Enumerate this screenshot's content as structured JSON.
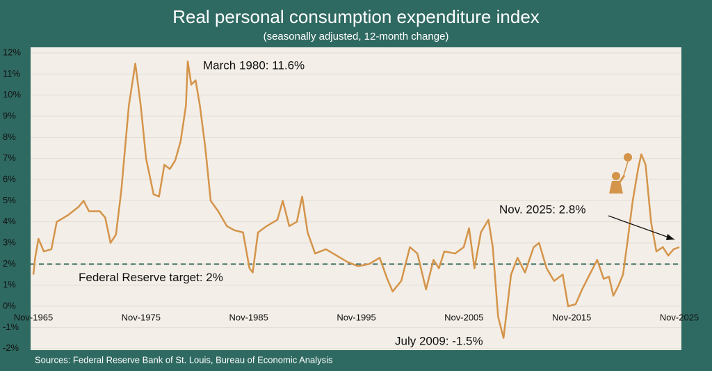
{
  "chart_data": {
    "type": "line",
    "title": "Real personal consumption expenditure index",
    "subtitle": "(seasonally adjusted, 12-month change)",
    "source": "Sources: Federal Reserve Bank of St. Louis, Bureau of Economic Analysis",
    "color": "#d4944a",
    "grid": true,
    "x": [
      1965.83,
      1966.0,
      1966.3,
      1966.8,
      1967.5,
      1968.0,
      1969.0,
      1970.0,
      1970.5,
      1971.0,
      1972.0,
      1972.5,
      1973.0,
      1973.5,
      1974.0,
      1974.7,
      1975.3,
      1975.8,
      1976.3,
      1977.0,
      1977.5,
      1978.0,
      1978.5,
      1979.0,
      1979.5,
      1980.0,
      1980.17,
      1980.5,
      1980.9,
      1981.3,
      1981.8,
      1982.3,
      1983.0,
      1983.8,
      1984.5,
      1985.3,
      1985.9,
      1986.2,
      1986.7,
      1987.5,
      1988.5,
      1989.0,
      1989.6,
      1990.3,
      1990.8,
      1991.3,
      1992.0,
      1993.0,
      1994.0,
      1995.0,
      1996.0,
      1997.0,
      1998.0,
      1998.7,
      1999.2,
      2000.0,
      2000.8,
      2001.5,
      2002.3,
      2003.0,
      2003.5,
      2004.0,
      2005.0,
      2005.8,
      2006.3,
      2006.8,
      2007.4,
      2008.1,
      2008.5,
      2009.0,
      2009.5,
      2010.2,
      2010.8,
      2011.5,
      2012.3,
      2012.8,
      2013.5,
      2014.2,
      2015.0,
      2015.5,
      2016.2,
      2016.8,
      2017.5,
      2018.2,
      2018.8,
      2019.3,
      2019.7,
      2020.2,
      2020.6,
      2021.0,
      2021.5,
      2022.0,
      2022.3,
      2022.7,
      2023.2,
      2023.7,
      2024.3,
      2024.8,
      2025.3,
      2025.83
    ],
    "values": [
      1.5,
      2.3,
      3.2,
      2.6,
      2.7,
      4.0,
      4.3,
      4.7,
      5.0,
      4.5,
      4.5,
      4.2,
      3.0,
      3.4,
      5.5,
      9.5,
      11.5,
      9.5,
      7.0,
      5.3,
      5.2,
      6.7,
      6.5,
      6.9,
      7.8,
      9.5,
      11.6,
      10.5,
      10.7,
      9.5,
      7.5,
      5.0,
      4.5,
      3.8,
      3.6,
      3.5,
      1.8,
      1.6,
      3.5,
      3.8,
      4.1,
      5.0,
      3.8,
      4.0,
      5.2,
      3.5,
      2.5,
      2.7,
      2.4,
      2.1,
      1.9,
      2.0,
      2.3,
      1.3,
      0.7,
      1.2,
      2.8,
      2.5,
      0.8,
      2.2,
      1.8,
      2.6,
      2.5,
      2.8,
      3.7,
      1.8,
      3.5,
      4.1,
      2.8,
      -0.5,
      -1.5,
      1.5,
      2.3,
      1.6,
      2.8,
      3.0,
      1.8,
      1.2,
      1.5,
      0.0,
      0.1,
      0.8,
      1.5,
      2.2,
      1.3,
      1.4,
      0.5,
      1.0,
      1.5,
      3.0,
      5.0,
      6.5,
      7.2,
      6.7,
      4.0,
      2.6,
      2.8,
      2.4,
      2.7,
      2.8
    ],
    "xlim": [
      1965.83,
      2025.83
    ],
    "xticks": [
      {
        "value": 1965.83,
        "label": "Nov-1965"
      },
      {
        "value": 1975.83,
        "label": "Nov-1975"
      },
      {
        "value": 1985.83,
        "label": "Nov-1985"
      },
      {
        "value": 1995.83,
        "label": "Nov-1995"
      },
      {
        "value": 2005.83,
        "label": "Nov-2005"
      },
      {
        "value": 2015.83,
        "label": "Nov-2015"
      },
      {
        "value": 2025.83,
        "label": "Nov-2025"
      }
    ],
    "ylim": [
      -2,
      12
    ],
    "yticks": [
      {
        "value": -2,
        "label": "-2%"
      },
      {
        "value": -1,
        "label": "-1%"
      },
      {
        "value": 0,
        "label": "0%"
      },
      {
        "value": 1,
        "label": "1%"
      },
      {
        "value": 2,
        "label": "2%"
      },
      {
        "value": 3,
        "label": "3%"
      },
      {
        "value": 4,
        "label": "4%"
      },
      {
        "value": 5,
        "label": "5%"
      },
      {
        "value": 6,
        "label": "6%"
      },
      {
        "value": 7,
        "label": "7%"
      },
      {
        "value": 8,
        "label": "8%"
      },
      {
        "value": 9,
        "label": "9%"
      },
      {
        "value": 10,
        "label": "10%"
      },
      {
        "value": 11,
        "label": "11%"
      },
      {
        "value": 12,
        "label": "12%"
      }
    ],
    "reference_line": {
      "value": 2,
      "label": "Federal Reserve target: 2%"
    },
    "annotations": [
      "March 1980: 11.6%",
      "July 2009: -1.5%",
      "Nov. 2025: 2.8%"
    ]
  }
}
